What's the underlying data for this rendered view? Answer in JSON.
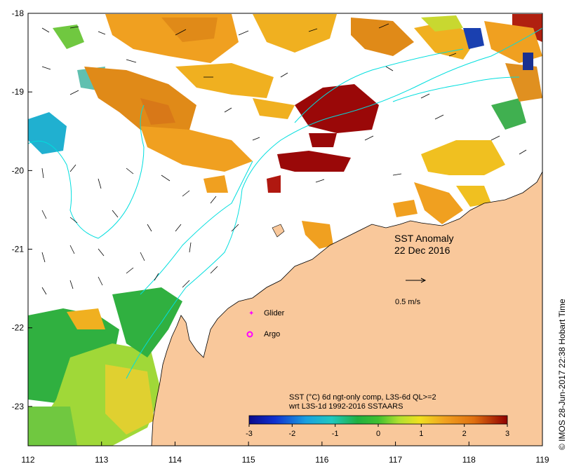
{
  "map": {
    "title": "SST Anomaly",
    "date": "22 Dec 2016",
    "x_range": [
      112,
      119
    ],
    "y_range": [
      -23.5,
      -18
    ],
    "x_ticks": [
      "112",
      "113",
      "114",
      "115",
      "116",
      "117",
      "118",
      "119"
    ],
    "y_ticks": [
      "-18",
      "-19",
      "-20",
      "-21",
      "-22",
      "-23"
    ],
    "current_scale_label": "0.5 m/s",
    "legend": {
      "glider_label": "Glider",
      "argo_label": "Argo"
    },
    "colorbar": {
      "title_line1": "SST (°C) 6d ngt-only comp, L3S-6d QL>=2",
      "title_line2": "wrt L3S-1d 1992-2016 SSTAARS",
      "ticks": [
        "-3",
        "-2",
        "-1",
        "0",
        "1",
        "2",
        "3"
      ],
      "range": [
        -3,
        3
      ]
    },
    "credit": "© IMOS 28-Jun-2017 22:38 Hobart Time",
    "colors": {
      "land": "#f9c89b",
      "ocean": "#ffffff",
      "contour": "#00dede",
      "marker": "#ff00ff"
    }
  }
}
